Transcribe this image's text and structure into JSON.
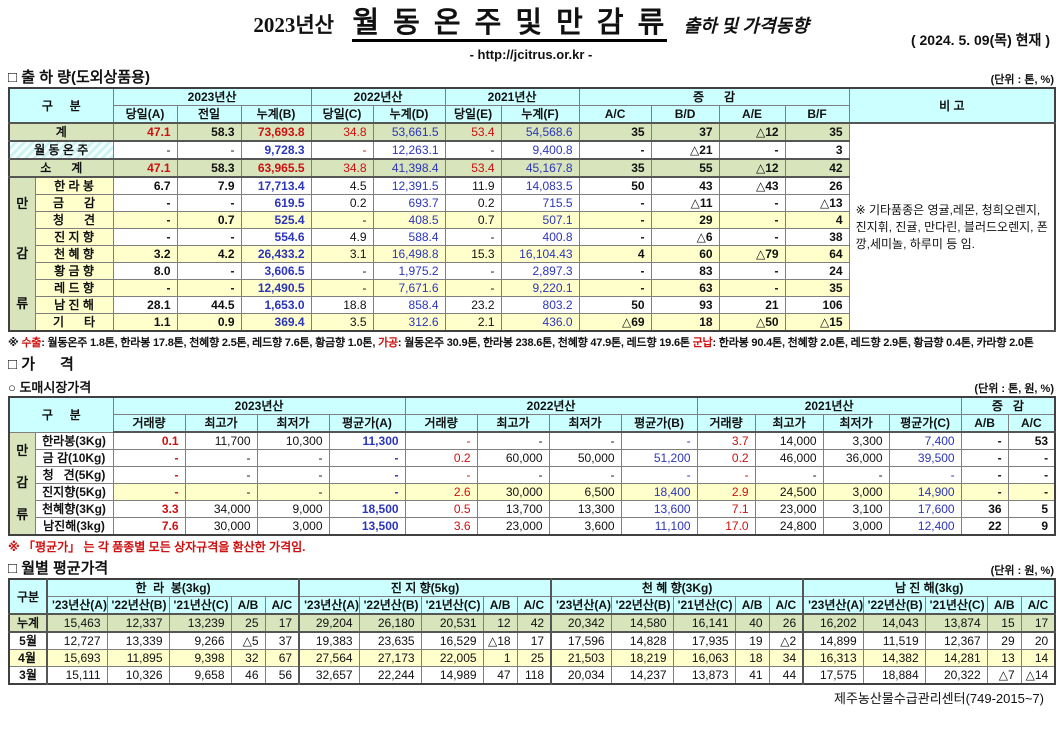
{
  "palette": {
    "red": "#cf1010",
    "blue": "#2b35bb",
    "green_bg": "#d8e4bc",
    "yellow_bg": "#ffffcc",
    "cyan_bg": "#ccffff"
  },
  "page": {
    "title_year": "2023년산",
    "title_main": "월 동 온 주 및 만 감 류",
    "title_suffix": "출하 및 가격동향",
    "url": "- http://jcitrus.or.kr -",
    "as_of": "( 2024.  5. 09(목) 현재 )",
    "footer": "제주농산물수급관리센터(749-2015~7)"
  },
  "shipment": {
    "section_title": "□ 출 하 량(도외상품용)",
    "unit": "(단위 : 톤, %)",
    "col_group_label": "구     분",
    "year_groups": [
      {
        "label": "2023년산",
        "subs": [
          "당일(A)",
          "전일",
          "누계(B)"
        ]
      },
      {
        "label": "2022년산",
        "subs": [
          "당일(C)",
          "누계(D)"
        ]
      },
      {
        "label": "2021년산",
        "subs": [
          "당일(E)",
          "누계(F)"
        ]
      }
    ],
    "change_group": {
      "label": "증      감",
      "subs": [
        "A/C",
        "B/D",
        "A/E",
        "B/F"
      ]
    },
    "remark_header": "비 고",
    "vertical_group_label": "만감류",
    "remark": "※ 기타품종은 영귤,레몬, 청희오렌지, 진지휘, 진귤, 만다린, 블러드오렌지, 폰깡,세미놀, 하루미 등 임.",
    "rows": [
      {
        "label": "계",
        "kind": "total",
        "cells": [
          "47.1",
          "58.3",
          "73,693.8",
          "34.8",
          "53,661.5",
          "53.4",
          "54,568.6",
          "35",
          "37",
          "△12",
          "35"
        ]
      },
      {
        "label": "월 동 온 주",
        "kind": "wd",
        "cells": [
          "-",
          "-",
          "9,728.3",
          "-",
          "12,263.1",
          "-",
          "9,400.8",
          "-",
          "△21",
          "-",
          "3"
        ]
      },
      {
        "label": "소      계",
        "kind": "total",
        "cells": [
          "47.1",
          "58.3",
          "63,965.5",
          "34.8",
          "41,398.4",
          "53.4",
          "45,167.8",
          "35",
          "55",
          "△12",
          "42"
        ]
      },
      {
        "label": "한 라 봉",
        "kind": "item",
        "cells": [
          "6.7",
          "7.9",
          "17,713.4",
          "4.5",
          "12,391.5",
          "11.9",
          "14,083.5",
          "50",
          "43",
          "△43",
          "26"
        ]
      },
      {
        "label": "금      감",
        "kind": "item",
        "cells": [
          "-",
          "-",
          "619.5",
          "0.2",
          "693.7",
          "0.2",
          "715.5",
          "-",
          "△11",
          "-",
          "△13"
        ]
      },
      {
        "label": "청      견",
        "kind": "item",
        "shade": true,
        "cells": [
          "-",
          "0.7",
          "525.4",
          "-",
          "408.5",
          "0.7",
          "507.1",
          "-",
          "29",
          "-",
          "4"
        ]
      },
      {
        "label": "진 지 향",
        "kind": "item",
        "cells": [
          "-",
          "-",
          "554.6",
          "4.9",
          "588.4",
          "-",
          "400.8",
          "-",
          "△6",
          "-",
          "38"
        ]
      },
      {
        "label": "천 혜 향",
        "kind": "item",
        "shade": true,
        "cells": [
          "3.2",
          "4.2",
          "26,433.2",
          "3.1",
          "16,498.8",
          "15.3",
          "16,104.43",
          "4",
          "60",
          "△79",
          "64"
        ]
      },
      {
        "label": "황 금 향",
        "kind": "item",
        "cells": [
          "8.0",
          "-",
          "3,606.5",
          "-",
          "1,975.2",
          "-",
          "2,897.3",
          "-",
          "83",
          "-",
          "24"
        ]
      },
      {
        "label": "레 드 향",
        "kind": "item",
        "shade": true,
        "cells": [
          "-",
          "-",
          "12,490.5",
          "-",
          "7,671.6",
          "-",
          "9,220.1",
          "-",
          "63",
          "-",
          "35"
        ]
      },
      {
        "label": "남 진 해",
        "kind": "item",
        "cells": [
          "28.1",
          "44.5",
          "1,653.0",
          "18.8",
          "858.4",
          "23.2",
          "803.2",
          "50",
          "93",
          "21",
          "106"
        ]
      },
      {
        "label": "기      타",
        "kind": "item",
        "shade": true,
        "cells": [
          "1.1",
          "0.9",
          "369.4",
          "3.5",
          "312.6",
          "2.1",
          "436.0",
          "△69",
          "18",
          "△50",
          "△15"
        ]
      }
    ],
    "footnote": [
      {
        "text": "※ ",
        "red": false
      },
      {
        "text": "수출",
        "red": true
      },
      {
        "text": ": 월동온주 1.8톤, 한라봉 17.8톤, 천혜향 2.5톤, 레드향 7.6톤, 황금향 1.0톤, ",
        "red": false
      },
      {
        "text": "가공",
        "red": true
      },
      {
        "text": ": 월동온주 30.9톤, 한라봉 238.6톤, 천혜향 47.9톤, 레드향 19.6톤 ",
        "red": false
      },
      {
        "text": "군납",
        "red": true
      },
      {
        "text": ": 한라봉 90.4톤, 천혜향 2.0톤, 레드향 2.9톤, 황금향 0.4톤, 카라향 2.0톤",
        "red": false
      }
    ]
  },
  "price": {
    "section_title": "□ 가      격",
    "subsection_title": "○ 도매시장가격",
    "unit": "(단위 : 톤, 원, %)",
    "col_group_label": "구     분",
    "year_groups": [
      {
        "label": "2023년산",
        "subs": [
          "거래량",
          "최고가",
          "최저가",
          "평균가(A)"
        ]
      },
      {
        "label": "2022년산",
        "subs": [
          "거래량",
          "최고가",
          "최저가",
          "평균가(B)"
        ]
      },
      {
        "label": "2021년산",
        "subs": [
          "거래량",
          "최고가",
          "최저가",
          "평균가(C)"
        ]
      }
    ],
    "change_group": {
      "label": "증   감",
      "subs": [
        "A/B",
        "A/C"
      ]
    },
    "vertical_group_label": "만감류",
    "rows": [
      {
        "label": "한라봉(3Kg)",
        "cells": [
          "0.1",
          "11,700",
          "10,300",
          "11,300",
          "-",
          "-",
          "-",
          "-",
          "3.7",
          "14,000",
          "3,300",
          "7,400",
          "-",
          "53"
        ]
      },
      {
        "label": "금 감(10Kg)",
        "cells": [
          "-",
          "-",
          "-",
          "-",
          "0.2",
          "60,000",
          "50,000",
          "51,200",
          "0.2",
          "46,000",
          "36,000",
          "39,500",
          "-",
          "-"
        ]
      },
      {
        "label": "청   견(5Kg)",
        "cells": [
          "-",
          "-",
          "-",
          "-",
          "-",
          "-",
          "-",
          "-",
          "-",
          "-",
          "-",
          "-",
          "-",
          "-"
        ]
      },
      {
        "label": "진지향(5Kg)",
        "shade": true,
        "cells": [
          "-",
          "-",
          "-",
          "-",
          "2.6",
          "30,000",
          "6,500",
          "18,400",
          "2.9",
          "24,500",
          "3,000",
          "14,900",
          "-",
          "-"
        ]
      },
      {
        "label": "천혜향(3Kg)",
        "cells": [
          "3.3",
          "34,000",
          "9,000",
          "18,500",
          "0.5",
          "13,700",
          "13,300",
          "13,600",
          "7.1",
          "23,000",
          "3,100",
          "17,600",
          "36",
          "5"
        ]
      },
      {
        "label": "남진해(3kg)",
        "cells": [
          "7.6",
          "30,000",
          "3,000",
          "13,500",
          "3.6",
          "23,000",
          "3,600",
          "11,100",
          "17.0",
          "24,800",
          "3,000",
          "12,400",
          "22",
          "9"
        ]
      }
    ],
    "note": "※ 「평균가」 는 각 품종별 모든 상자규격을 환산한 가격임."
  },
  "monthly": {
    "section_title": "□ 월별 평균가격",
    "unit": "(단위 : 원, %)",
    "col_group_label": "구분",
    "fruit_groups": [
      "한  라  봉(3kg)",
      "진 지 향(5kg)",
      "천 혜 향(3Kg)",
      "남 진 해(3kg)"
    ],
    "sub_headers": [
      "'23년산(A)",
      "'22년산(B)",
      "'21년산(C)",
      "A/B",
      "A/C"
    ],
    "rows": [
      {
        "label": "누계",
        "kind": "total",
        "cells": [
          "15,463",
          "12,337",
          "13,239",
          "25",
          "17",
          "29,204",
          "26,180",
          "20,531",
          "12",
          "42",
          "20,342",
          "14,580",
          "16,141",
          "40",
          "26",
          "16,202",
          "14,043",
          "13,874",
          "15",
          "17"
        ]
      },
      {
        "label": "5월",
        "cells": [
          "12,727",
          "13,339",
          "9,266",
          "△5",
          "37",
          "19,383",
          "23,635",
          "16,529",
          "△18",
          "17",
          "17,596",
          "14,828",
          "17,935",
          "19",
          "△2",
          "14,899",
          "11,519",
          "12,367",
          "29",
          "20"
        ]
      },
      {
        "label": "4월",
        "shade": true,
        "cells": [
          "15,693",
          "11,895",
          "9,398",
          "32",
          "67",
          "27,564",
          "27,173",
          "22,005",
          "1",
          "25",
          "21,503",
          "18,219",
          "16,063",
          "18",
          "34",
          "16,313",
          "14,382",
          "14,281",
          "13",
          "14"
        ]
      },
      {
        "label": "3월",
        "cells": [
          "15,111",
          "10,326",
          "9,658",
          "46",
          "56",
          "32,657",
          "22,244",
          "14,989",
          "47",
          "118",
          "20,034",
          "14,237",
          "13,873",
          "41",
          "44",
          "17,575",
          "18,884",
          "20,322",
          "△7",
          "△14"
        ]
      }
    ]
  }
}
